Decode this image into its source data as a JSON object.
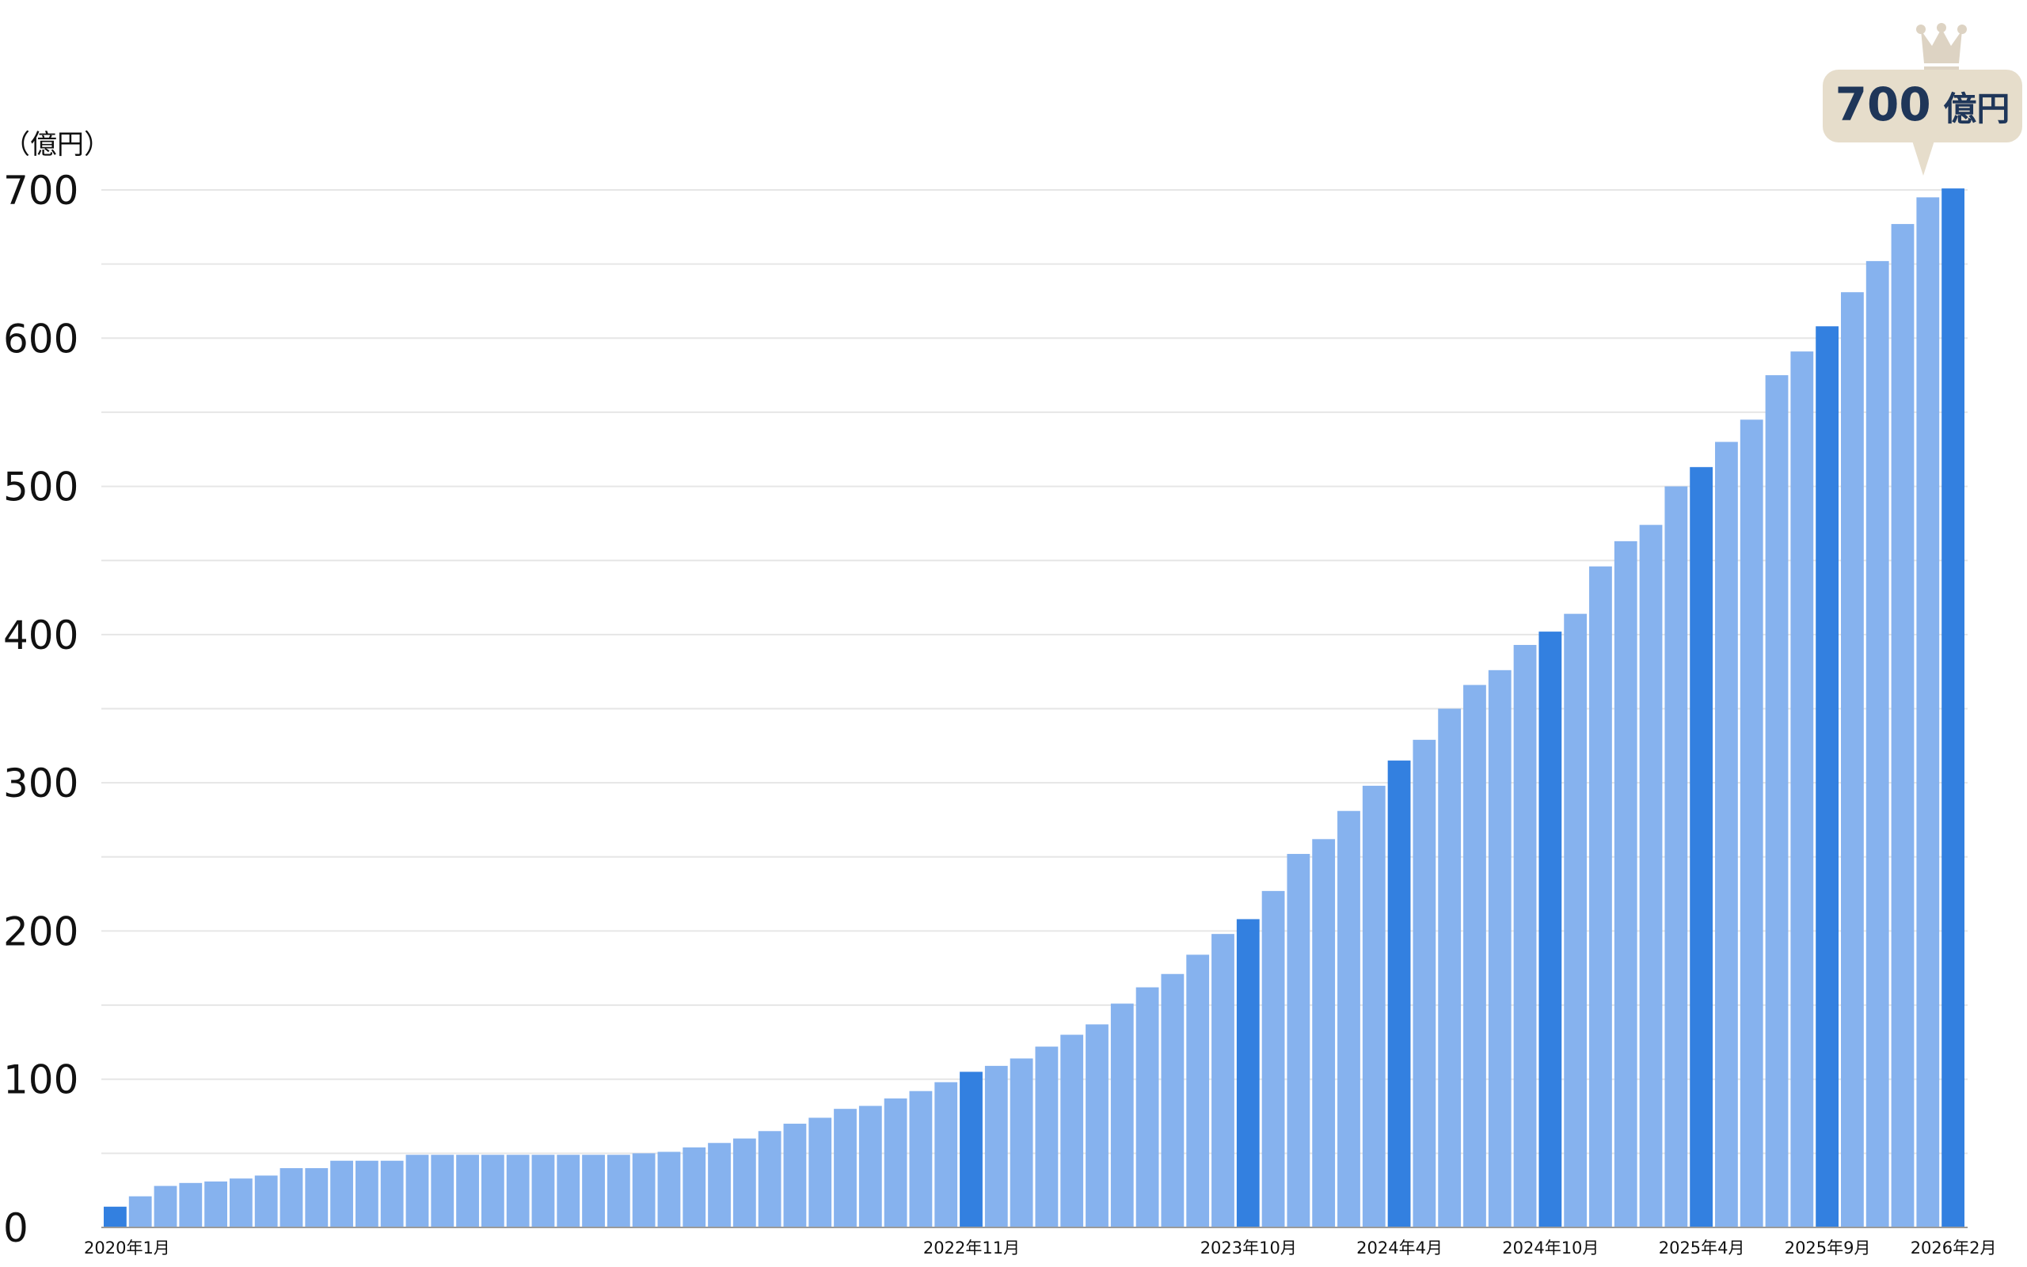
{
  "chart_data": {
    "type": "bar",
    "ylabel": "（億円）",
    "ylim": [
      0,
      700
    ],
    "yticks": [
      "0",
      "100",
      "200",
      "300",
      "400",
      "500",
      "600",
      "700"
    ],
    "grid": true,
    "x_labels": [
      {
        "index": 0,
        "text": "2020年1月"
      },
      {
        "index": 34,
        "text": "2022年11月"
      },
      {
        "index": 45,
        "text": "2023年10月"
      },
      {
        "index": 51,
        "text": "2024年4月"
      },
      {
        "index": 57,
        "text": "2024年10月"
      },
      {
        "index": 63,
        "text": "2025年4月"
      },
      {
        "index": 68,
        "text": "2025年9月"
      },
      {
        "index": 73,
        "text": "2026年2月"
      }
    ],
    "values": [
      14,
      21,
      28,
      30,
      31,
      33,
      35,
      40,
      40,
      45,
      45,
      45,
      49,
      49,
      49,
      49,
      49,
      49,
      49,
      49,
      49,
      50,
      51,
      54,
      57,
      60,
      65,
      70,
      74,
      80,
      82,
      87,
      92,
      98,
      105,
      109,
      114,
      122,
      130,
      137,
      151,
      162,
      171,
      184,
      198,
      208,
      227,
      252,
      262,
      281,
      298,
      315,
      329,
      350,
      366,
      376,
      393,
      402,
      414,
      446,
      463,
      474,
      500,
      513,
      530,
      545,
      575,
      591,
      608,
      631,
      652,
      677,
      695,
      701
    ],
    "highlight_indices": [
      0,
      34,
      45,
      51,
      57,
      63,
      68,
      73
    ],
    "colors": {
      "bar": "#86b2ee",
      "highlight": "#3380e0",
      "grid": "#e6e6e6",
      "callout_bg": "#e6ddcb",
      "callout_text": "#1f3659",
      "crown": "#ddd3c3"
    },
    "callout": {
      "index": 73,
      "value_text": "700",
      "unit_text": "億円",
      "icon": "crown-icon"
    }
  }
}
